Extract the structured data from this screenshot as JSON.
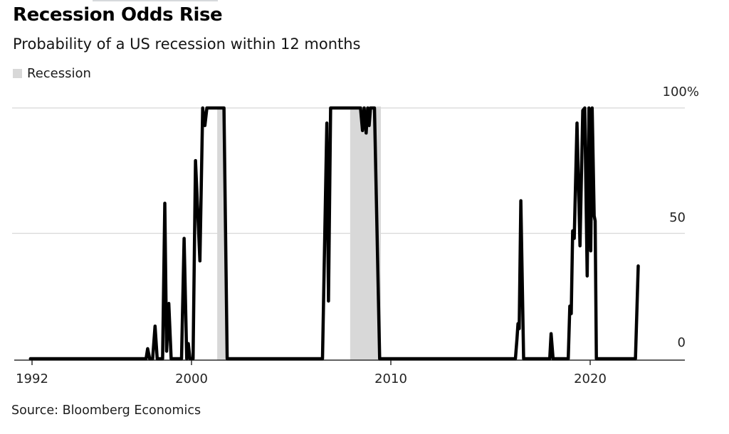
{
  "header": {
    "title": "Recession Odds Rise",
    "subtitle": "Probability of a US recession within 12 months"
  },
  "legend": {
    "label": "Recession",
    "swatch_color": "#d8d8d8"
  },
  "source": "Source: Bloomberg Economics",
  "chart_data": {
    "type": "line",
    "title": "Recession Odds Rise",
    "subtitle": "Probability of a US recession within 12 months",
    "xlim": [
      1991.1,
      2024.8
    ],
    "ylim": [
      0,
      100
    ],
    "grid": "horizontal",
    "legend_position": "top-left",
    "line_color": "#000000",
    "grid_color": "#d8d8d8",
    "axis_color": "#2d2d2d",
    "band_color": "#d8d8d8",
    "x_ticks": [
      {
        "label": "1992",
        "year": 1992
      },
      {
        "label": "2000",
        "year": 2000
      },
      {
        "label": "2010",
        "year": 2010
      },
      {
        "label": "2020",
        "year": 2020
      }
    ],
    "y_ticks": [
      {
        "label": "100%",
        "value": 100
      },
      {
        "label": "50",
        "value": 50
      },
      {
        "label": "0",
        "value": 0
      }
    ],
    "recession_bands": [
      {
        "start": 2001.29,
        "end": 2001.71
      },
      {
        "start": 2007.96,
        "end": 2009.5
      }
    ],
    "series": [
      {
        "name": "US recession probability within 12 months",
        "color": "#000000",
        "points": [
          [
            1991.92,
            0
          ],
          [
            1997.72,
            0
          ],
          [
            1997.8,
            4
          ],
          [
            1997.9,
            0
          ],
          [
            1998.05,
            0
          ],
          [
            1998.17,
            13
          ],
          [
            1998.28,
            0
          ],
          [
            1998.55,
            0
          ],
          [
            1998.66,
            62
          ],
          [
            1998.75,
            3
          ],
          [
            1998.86,
            22
          ],
          [
            1998.98,
            0
          ],
          [
            1999.5,
            0
          ],
          [
            1999.63,
            48
          ],
          [
            1999.76,
            0
          ],
          [
            1999.84,
            6
          ],
          [
            1999.92,
            0
          ],
          [
            2000.08,
            0
          ],
          [
            2000.2,
            79
          ],
          [
            2000.42,
            39
          ],
          [
            2000.56,
            100
          ],
          [
            2000.67,
            93
          ],
          [
            2000.77,
            100
          ],
          [
            2001.63,
            100
          ],
          [
            2001.79,
            0
          ],
          [
            2006.57,
            0
          ],
          [
            2006.79,
            94
          ],
          [
            2006.87,
            23
          ],
          [
            2006.98,
            100
          ],
          [
            2008.48,
            100
          ],
          [
            2008.58,
            91
          ],
          [
            2008.66,
            100
          ],
          [
            2008.76,
            90
          ],
          [
            2008.84,
            100
          ],
          [
            2008.91,
            93
          ],
          [
            2008.98,
            100
          ],
          [
            2009.18,
            100
          ],
          [
            2009.44,
            0
          ],
          [
            2016.25,
            0
          ],
          [
            2016.33,
            8
          ],
          [
            2016.38,
            14
          ],
          [
            2016.44,
            12
          ],
          [
            2016.52,
            63
          ],
          [
            2016.66,
            0
          ],
          [
            2017.97,
            0
          ],
          [
            2018.04,
            10
          ],
          [
            2018.14,
            0
          ],
          [
            2018.9,
            0
          ],
          [
            2018.98,
            21
          ],
          [
            2019.05,
            18
          ],
          [
            2019.12,
            51
          ],
          [
            2019.2,
            48
          ],
          [
            2019.34,
            94
          ],
          [
            2019.49,
            45
          ],
          [
            2019.63,
            99
          ],
          [
            2019.73,
            100
          ],
          [
            2019.85,
            33
          ],
          [
            2019.94,
            100
          ],
          [
            2020.03,
            43
          ],
          [
            2020.1,
            100
          ],
          [
            2020.2,
            57
          ],
          [
            2020.25,
            55
          ],
          [
            2020.31,
            0
          ],
          [
            2022.27,
            0
          ],
          [
            2022.41,
            37
          ]
        ]
      }
    ]
  }
}
